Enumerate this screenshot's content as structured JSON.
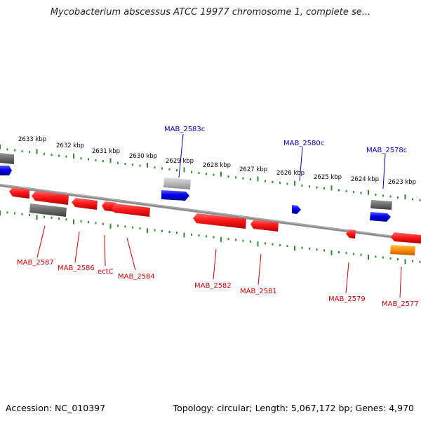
{
  "title": "Mycobacterium abscessus ATCC 19977 chromosome 1, complete se...",
  "footer": {
    "accession": "Accession: NC_010397",
    "summary": "Topology: circular; Length: 5,067,172 bp; Genes: 4,970"
  },
  "colors": {
    "forward_gene": "#0000e0",
    "reverse_gene": "#ff0000",
    "pseudo_gene": "#777777",
    "highlight_gene": "#ff8c00",
    "rna_gene": "#bbbbbb",
    "ticks": "#2e8b2e",
    "backbone": "#8c8c8c",
    "forward_label": "#0000bb",
    "reverse_label": "#cc0000"
  },
  "scale_ticks": [
    "2633 kbp",
    "2632 kbp",
    "2631 kbp",
    "2630 kbp",
    "2629 kbp",
    "2628 kbp",
    "2627 kbp",
    "2626 kbp",
    "2625 kbp",
    "2624 kbp",
    "2623 kbp"
  ],
  "genes": [
    {
      "name": "MAB_2583c",
      "strand": "forward"
    },
    {
      "name": "MAB_2580c",
      "strand": "forward"
    },
    {
      "name": "MAB_2578c",
      "strand": "forward"
    },
    {
      "name": "MAB_2587",
      "strand": "reverse"
    },
    {
      "name": "MAB_2586",
      "strand": "reverse"
    },
    {
      "name": "ectC",
      "strand": "reverse"
    },
    {
      "name": "MAB_2584",
      "strand": "reverse"
    },
    {
      "name": "MAB_2582",
      "strand": "reverse"
    },
    {
      "name": "MAB_2581",
      "strand": "reverse"
    },
    {
      "name": "MAB_2579",
      "strand": "reverse"
    },
    {
      "name": "MAB_2577",
      "strand": "reverse"
    }
  ]
}
